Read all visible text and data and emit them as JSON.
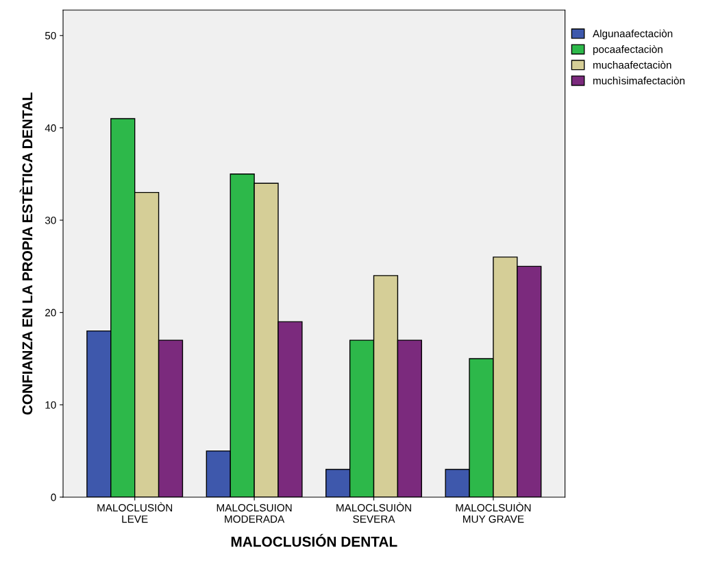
{
  "chart_data": {
    "type": "bar",
    "xlabel": "MALOCLUSIÓN DENTAL",
    "ylabel": "CONFIANZA EN LA PROPIA ESTÈTICA DENTAL",
    "categories": [
      "MALOCLUSIÒN\nLEVE",
      "MALOCLSUION\nMODERADA",
      "MALOCLSUIÒN\nSEVERA",
      "MALOCLSUIÒN\nMUY GRAVE"
    ],
    "series": [
      {
        "name": "Algunaafectaciòn",
        "color": "#3e58ac",
        "values": [
          18,
          5,
          3,
          3
        ]
      },
      {
        "name": "pocaafectaciòn",
        "color": "#2db84a",
        "values": [
          41,
          35,
          17,
          15
        ]
      },
      {
        "name": "muchaafectaciòn",
        "color": "#d5ce97",
        "values": [
          33,
          34,
          24,
          26
        ]
      },
      {
        "name": "muchìsimafectaciòn",
        "color": "#7b2a7d",
        "values": [
          17,
          19,
          17,
          25
        ]
      }
    ],
    "ylim": [
      0,
      52.75
    ],
    "yticks": [
      0,
      10,
      20,
      30,
      40,
      50
    ],
    "grid": false,
    "legend": "top right"
  }
}
